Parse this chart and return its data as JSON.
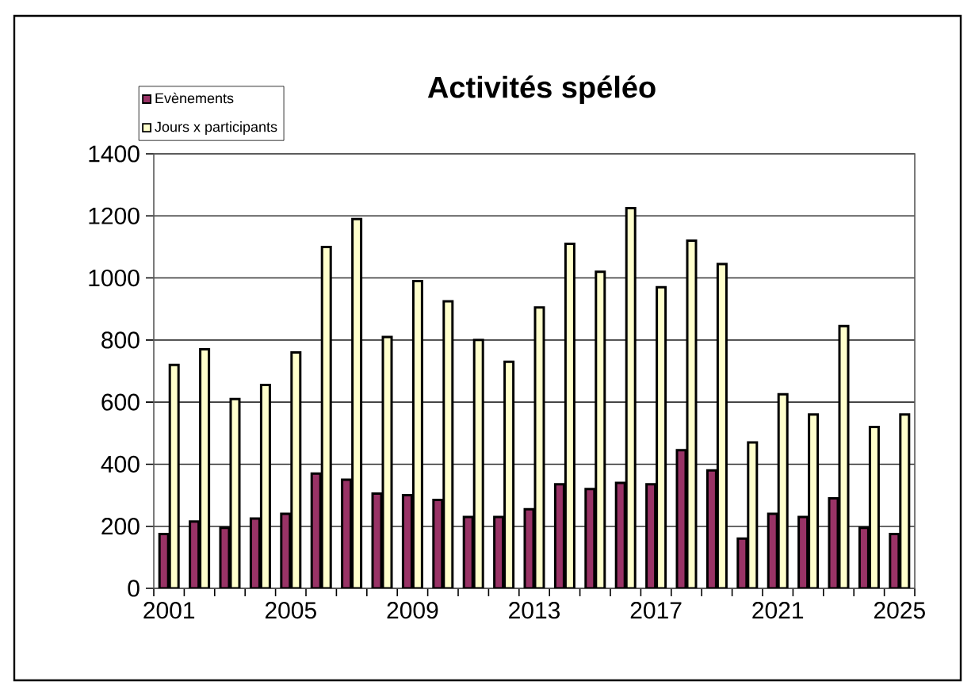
{
  "chart_data": {
    "type": "bar",
    "title": "Activités spéléo",
    "categories": [
      "2001",
      null,
      null,
      null,
      "2005",
      null,
      null,
      null,
      "2009",
      null,
      null,
      null,
      "2013",
      null,
      null,
      null,
      "2017",
      null,
      null,
      null,
      "2021",
      null,
      null,
      null,
      "2025"
    ],
    "series": [
      {
        "name": "Evènements",
        "color": "#993366",
        "values": [
          175,
          215,
          195,
          225,
          240,
          370,
          350,
          305,
          300,
          285,
          230,
          230,
          255,
          335,
          320,
          340,
          335,
          445,
          380,
          160,
          240,
          230,
          290,
          195,
          175
        ]
      },
      {
        "name": "Jours x participants",
        "color": "#ffffcc",
        "values": [
          720,
          770,
          610,
          655,
          760,
          1100,
          1190,
          810,
          990,
          925,
          800,
          730,
          905,
          1110,
          1020,
          1225,
          970,
          1120,
          1045,
          470,
          625,
          560,
          845,
          520,
          560
        ]
      }
    ],
    "ylim": [
      0,
      1400
    ],
    "yticks": [
      0,
      200,
      400,
      600,
      800,
      1000,
      1200,
      1400
    ],
    "grid": "y",
    "legend": "top left"
  }
}
